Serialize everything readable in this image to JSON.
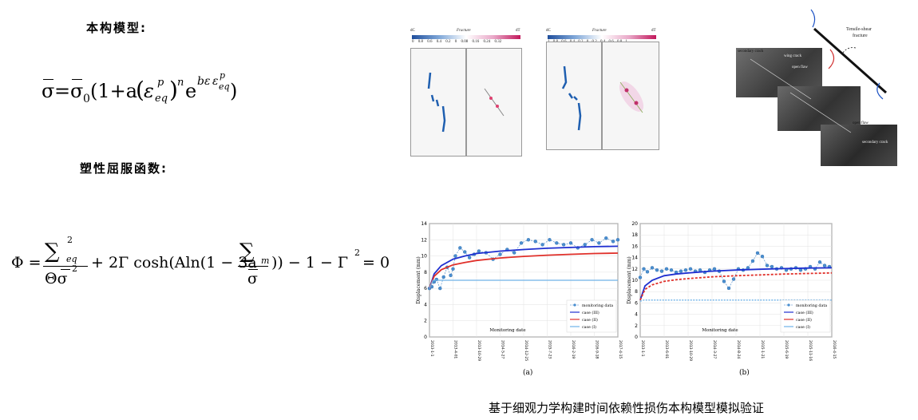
{
  "left": {
    "constitutive_label": "本构模型:",
    "yield_label": "塑性屈服函数:",
    "eq1": {
      "lhs": "σ",
      "eqsign": "=",
      "sigma": "σ",
      "sub0": "0",
      "open": "(1+a",
      "eps": "ε",
      "eq_sub": "eq",
      "p_sup": "p",
      "close_n": ")",
      "n": "n",
      "e": "e",
      "exp_b": "bε",
      "exp_e": "ε",
      "exp_p": "p",
      "exp_eq": "eq",
      "tail": ")"
    },
    "eq2": {
      "phi": "Φ =",
      "sum1": "∑",
      "sum1_sup": "2",
      "sum1_sub": "eq",
      "den_theta": "Θσ",
      "den_sup": "2",
      "mid": "+ 2Γ cosh(Aln(1 − 3a",
      "sum2": "∑",
      "sum2_sub": "m",
      "den2": "σ",
      "tail": ")) − 1 − Γ",
      "tail_sup": "2",
      "end": "= 0"
    }
  },
  "fracture_panels": [
    {
      "title": "Fracture",
      "left_label": "dC",
      "right_label": "dT",
      "ticks": [
        "0.8",
        "0.6",
        "0.4",
        "0.2",
        "0",
        "0.08",
        "0.16",
        "0.24",
        "0.32"
      ]
    },
    {
      "title": "Fracture",
      "left_label": "dC",
      "right_label": "dT",
      "ticks": [
        "1",
        "0.8",
        "0.6",
        "0.4",
        "0.2",
        "0",
        "0.2",
        "0.4",
        "0.6",
        "0.8",
        "1"
      ]
    }
  ],
  "photo": {
    "label_top": "Tensile-shear",
    "label_top2": "fracture",
    "labels": [
      "secondary crack",
      "wing crack",
      "open flaw",
      "open flaw",
      "secondary crack"
    ]
  },
  "charts_caption": {
    "a": "(a)",
    "b": "(b)"
  },
  "caption": "基于细观力学构建时间依赖性损伤本构模型模拟验证",
  "chart_data": [
    {
      "type": "line",
      "ylabel": "Displacement (mm)",
      "xlabel": "Monitoring date",
      "ylim": [
        0,
        14
      ],
      "yticks": [
        "0",
        "2",
        "4",
        "6",
        "8",
        "10",
        "12",
        "14"
      ],
      "xticks": [
        "2013-1-1",
        "2013-4-01",
        "2013-10-29",
        "2014-5-27",
        "2014-12-25",
        "2015-7-23",
        "2016-2-19",
        "2016-9-18",
        "2017-4-15"
      ],
      "legend": [
        "monitoring data",
        "case (III)",
        "case (II)",
        "case (I)"
      ],
      "series": [
        {
          "name": "monitoring data",
          "color": "#3a7fc4",
          "x": [
            0,
            0.1,
            0.2,
            0.3,
            0.45,
            0.6,
            0.75,
            0.9,
            1.0,
            1.1,
            1.3,
            1.5,
            1.7,
            1.9,
            2.1,
            2.4,
            2.7,
            3.0,
            3.3,
            3.6,
            3.9,
            4.2,
            4.5,
            4.8,
            5.1,
            5.4,
            5.7,
            6.0,
            6.3,
            6.6,
            6.9,
            7.2,
            7.5,
            7.8,
            8.0
          ],
          "y": [
            6.0,
            6.2,
            6.8,
            7.1,
            6.0,
            7.4,
            8.6,
            7.6,
            8.4,
            10.0,
            11.0,
            10.5,
            9.8,
            10.2,
            10.6,
            10.4,
            9.6,
            10.2,
            10.8,
            10.4,
            11.6,
            12.0,
            11.8,
            11.4,
            12.0,
            11.6,
            11.4,
            11.6,
            11.0,
            11.4,
            12.0,
            11.6,
            12.2,
            11.8,
            12.0
          ]
        },
        {
          "name": "case (III)",
          "color": "#1f2fd0",
          "x": [
            0,
            0.2,
            0.5,
            1,
            1.5,
            2,
            3,
            4,
            5,
            6,
            7,
            8
          ],
          "y": [
            6.0,
            7.8,
            8.8,
            9.6,
            10.0,
            10.3,
            10.6,
            10.8,
            10.95,
            11.05,
            11.15,
            11.2
          ]
        },
        {
          "name": "case (II)",
          "color": "#e0302a",
          "x": [
            0,
            0.2,
            0.5,
            1,
            1.5,
            2,
            3,
            4,
            5,
            6,
            7,
            8
          ],
          "y": [
            6.0,
            7.5,
            8.3,
            8.9,
            9.2,
            9.45,
            9.75,
            9.95,
            10.1,
            10.2,
            10.3,
            10.35
          ]
        },
        {
          "name": "case (I)",
          "color": "#6fb2e8",
          "x": [
            0,
            0.15,
            8
          ],
          "y": [
            6.0,
            7.0,
            7.0
          ]
        }
      ]
    },
    {
      "type": "line",
      "ylabel": "Displacement (mm)",
      "xlabel": "Monitoring date",
      "ylim": [
        0,
        20
      ],
      "yticks": [
        "0",
        "2",
        "4",
        "6",
        "8",
        "10",
        "12",
        "14",
        "16",
        "18",
        "20"
      ],
      "xticks": [
        "2013-1-1",
        "2013-6-01",
        "2013-10-29",
        "2014-3-27",
        "2014-8-24",
        "2015-1-21",
        "2015-6-19",
        "2015-11-16",
        "2016-4-15"
      ],
      "legend": [
        "monitoring data",
        "case (III)",
        "case (II)",
        "case (I)"
      ],
      "series": [
        {
          "name": "monitoring data",
          "color": "#3a7fc4",
          "x": [
            0,
            0.15,
            0.3,
            0.5,
            0.7,
            0.9,
            1.1,
            1.3,
            1.5,
            1.7,
            1.9,
            2.1,
            2.3,
            2.5,
            2.7,
            2.9,
            3.1,
            3.3,
            3.5,
            3.7,
            3.9,
            4.1,
            4.3,
            4.5,
            4.7,
            4.9,
            5.1,
            5.3,
            5.5,
            5.7,
            5.9,
            6.1,
            6.3,
            6.5,
            6.7,
            6.9,
            7.1,
            7.3,
            7.5,
            7.7,
            7.9
          ],
          "y": [
            10.5,
            12.0,
            11.5,
            12.2,
            11.8,
            11.6,
            12.0,
            11.8,
            11.4,
            11.6,
            11.8,
            12.0,
            11.6,
            11.8,
            11.4,
            11.8,
            12.0,
            11.6,
            9.8,
            8.6,
            10.2,
            12.0,
            11.8,
            12.2,
            13.4,
            14.8,
            14.2,
            12.6,
            12.4,
            12.0,
            12.2,
            11.8,
            12.0,
            12.2,
            11.8,
            12.0,
            12.4,
            12.0,
            13.2,
            12.6,
            12.4
          ]
        },
        {
          "name": "case (III)",
          "color": "#1f2fd0",
          "x": [
            0,
            0.2,
            0.5,
            1,
            1.5,
            2,
            3,
            4,
            5,
            6,
            7,
            8
          ],
          "y": [
            6.5,
            9.0,
            10.0,
            10.8,
            11.1,
            11.3,
            11.6,
            11.8,
            11.95,
            12.05,
            12.15,
            12.2
          ]
        },
        {
          "name": "case (II)",
          "color": "#e0302a",
          "x": [
            0,
            0.2,
            0.5,
            1,
            1.5,
            2,
            3,
            4,
            5,
            6,
            7,
            8
          ],
          "y": [
            6.5,
            8.4,
            9.2,
            9.8,
            10.1,
            10.3,
            10.6,
            10.8,
            10.95,
            11.1,
            11.2,
            11.3
          ]
        },
        {
          "name": "case (I)",
          "color": "#6fb2e8",
          "x": [
            0,
            0.15,
            8
          ],
          "y": [
            6.3,
            6.5,
            6.5
          ]
        }
      ]
    }
  ]
}
